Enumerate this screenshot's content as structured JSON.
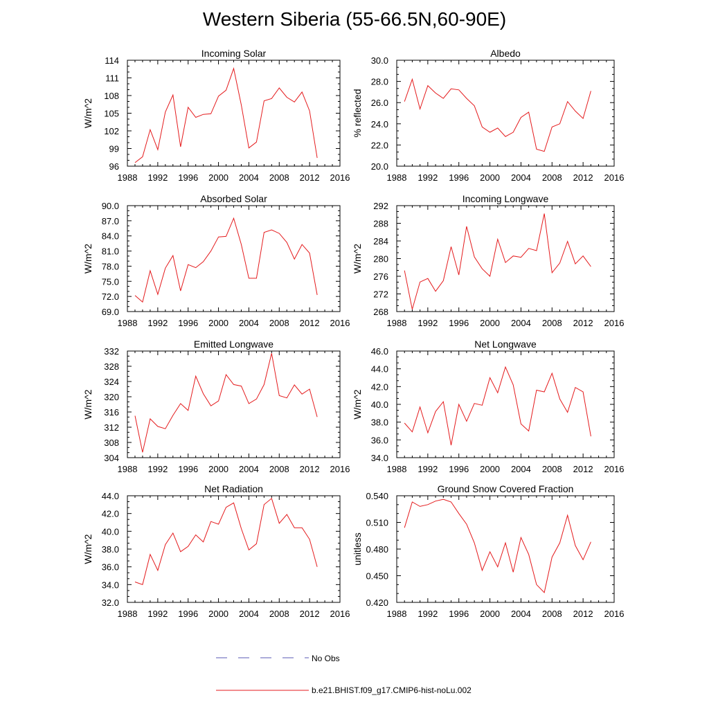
{
  "title": "Western Siberia (55-66.5N,60-90E)",
  "legend": {
    "obs_label": "No Obs",
    "model_label": "b.e21.BHIST.f09_g17.CMIP6-hist-noLu.002",
    "obs_color": "#5a5ab4",
    "model_color": "#e41a1c",
    "placement": "bottom-center"
  },
  "chart_data": [
    {
      "type": "line",
      "title": "Incoming Solar",
      "ylabel": "W/m^2",
      "xlim": [
        1988,
        2016
      ],
      "ylim": [
        96,
        114
      ],
      "xticks": [
        "1988",
        "1992",
        "1996",
        "2000",
        "2004",
        "2008",
        "2012",
        "2016"
      ],
      "yticks": [
        "96",
        "99",
        "102",
        "105",
        "108",
        "111",
        "114"
      ],
      "x": [
        1989,
        1990,
        1991,
        1992,
        1993,
        1994,
        1995,
        1996,
        1997,
        1998,
        1999,
        2000,
        2001,
        2002,
        2003,
        2004,
        2005,
        2006,
        2007,
        2008,
        2009,
        2010,
        2011,
        2012,
        2013
      ],
      "series": [
        {
          "color": "#e41a1c",
          "values": [
            96.6,
            97.6,
            102.2,
            98.8,
            105.2,
            108.1,
            99.3,
            106.0,
            104.3,
            104.8,
            104.9,
            107.9,
            108.9,
            112.6,
            106.4,
            99.1,
            100.1,
            107.1,
            107.5,
            109.3,
            107.7,
            106.9,
            108.6,
            105.4,
            97.4
          ]
        }
      ]
    },
    {
      "type": "line",
      "title": "Albedo",
      "ylabel": "% reflected",
      "xlim": [
        1988,
        2016
      ],
      "ylim": [
        20,
        30
      ],
      "xticks": [
        "1988",
        "1992",
        "1996",
        "2000",
        "2004",
        "2008",
        "2012",
        "2016"
      ],
      "yticks": [
        "20.0",
        "22.0",
        "24.0",
        "26.0",
        "28.0",
        "30.0"
      ],
      "x": [
        1989,
        1990,
        1991,
        1992,
        1993,
        1994,
        1995,
        1996,
        1997,
        1998,
        1999,
        2000,
        2001,
        2002,
        2003,
        2004,
        2005,
        2006,
        2007,
        2008,
        2009,
        2010,
        2011,
        2012,
        2013
      ],
      "series": [
        {
          "color": "#e41a1c",
          "values": [
            26.1,
            28.2,
            25.4,
            27.6,
            26.9,
            26.4,
            27.3,
            27.2,
            26.4,
            25.7,
            23.7,
            23.2,
            23.6,
            22.8,
            23.2,
            24.6,
            25.1,
            21.6,
            21.4,
            23.7,
            24.0,
            26.1,
            25.2,
            24.5,
            27.1
          ]
        }
      ]
    },
    {
      "type": "line",
      "title": "Absorbed Solar",
      "ylabel": "W/m^2",
      "xlim": [
        1988,
        2016
      ],
      "ylim": [
        69,
        90
      ],
      "xticks": [
        "1988",
        "1992",
        "1996",
        "2000",
        "2004",
        "2008",
        "2012",
        "2016"
      ],
      "yticks": [
        "69.0",
        "72.0",
        "75.0",
        "78.0",
        "81.0",
        "84.0",
        "87.0",
        "90.0"
      ],
      "x": [
        1989,
        1990,
        1991,
        1992,
        1993,
        1994,
        1995,
        1996,
        1997,
        1998,
        1999,
        2000,
        2001,
        2002,
        2003,
        2004,
        2005,
        2006,
        2007,
        2008,
        2009,
        2010,
        2011,
        2012,
        2013
      ],
      "series": [
        {
          "color": "#e41a1c",
          "values": [
            72.2,
            70.9,
            77.1,
            72.4,
            77.6,
            80.1,
            73.1,
            78.3,
            77.7,
            78.9,
            81.0,
            83.8,
            83.9,
            87.5,
            82.3,
            75.6,
            75.6,
            84.7,
            85.2,
            84.5,
            82.7,
            79.4,
            82.3,
            80.6,
            72.3
          ]
        }
      ]
    },
    {
      "type": "line",
      "title": "Incoming Longwave",
      "ylabel": "W/m^2",
      "xlim": [
        1988,
        2016
      ],
      "ylim": [
        268,
        292
      ],
      "xticks": [
        "1988",
        "1992",
        "1996",
        "2000",
        "2004",
        "2008",
        "2012",
        "2016"
      ],
      "yticks": [
        "268",
        "272",
        "276",
        "280",
        "284",
        "288",
        "292"
      ],
      "x": [
        1989,
        1990,
        1991,
        1992,
        1993,
        1994,
        1995,
        1996,
        1997,
        1998,
        1999,
        2000,
        2001,
        2002,
        2003,
        2004,
        2005,
        2006,
        2007,
        2008,
        2009,
        2010,
        2011,
        2012,
        2013
      ],
      "series": [
        {
          "color": "#e41a1c",
          "values": [
            277.3,
            268.5,
            274.7,
            275.5,
            272.6,
            275.0,
            282.7,
            276.3,
            287.3,
            280.4,
            277.7,
            276.0,
            284.4,
            279.1,
            280.6,
            280.3,
            282.3,
            281.8,
            290.2,
            276.8,
            279.0,
            283.9,
            278.8,
            280.6,
            278.2
          ]
        }
      ]
    },
    {
      "type": "line",
      "title": "Emitted Longwave",
      "ylabel": "W/m^2",
      "xlim": [
        1988,
        2016
      ],
      "ylim": [
        304,
        332
      ],
      "xticks": [
        "1988",
        "1992",
        "1996",
        "2000",
        "2004",
        "2008",
        "2012",
        "2016"
      ],
      "yticks": [
        "304",
        "308",
        "312",
        "316",
        "320",
        "324",
        "328",
        "332"
      ],
      "x": [
        1989,
        1990,
        1991,
        1992,
        1993,
        1994,
        1995,
        1996,
        1997,
        1998,
        1999,
        2000,
        2001,
        2002,
        2003,
        2004,
        2005,
        2006,
        2007,
        2008,
        2009,
        2010,
        2011,
        2012,
        2013
      ],
      "series": [
        {
          "color": "#e41a1c",
          "values": [
            315.0,
            305.4,
            314.2,
            312.2,
            311.6,
            315.1,
            318.2,
            316.4,
            325.4,
            320.8,
            317.6,
            318.9,
            325.8,
            323.2,
            322.8,
            318.2,
            319.4,
            323.2,
            331.4,
            320.3,
            319.7,
            323.1,
            320.7,
            322.0,
            314.7
          ]
        }
      ]
    },
    {
      "type": "line",
      "title": "Net Longwave",
      "ylabel": "W/m^2",
      "xlim": [
        1988,
        2016
      ],
      "ylim": [
        34,
        46
      ],
      "xticks": [
        "1988",
        "1992",
        "1996",
        "2000",
        "2004",
        "2008",
        "2012",
        "2016"
      ],
      "yticks": [
        "34.0",
        "36.0",
        "38.0",
        "40.0",
        "42.0",
        "44.0",
        "46.0"
      ],
      "x": [
        1989,
        1990,
        1991,
        1992,
        1993,
        1994,
        1995,
        1996,
        1997,
        1998,
        1999,
        2000,
        2001,
        2002,
        2003,
        2004,
        2005,
        2006,
        2007,
        2008,
        2009,
        2010,
        2011,
        2012,
        2013
      ],
      "series": [
        {
          "color": "#e41a1c",
          "values": [
            37.9,
            36.9,
            39.7,
            36.8,
            39.2,
            40.3,
            35.4,
            40.0,
            38.1,
            40.1,
            39.9,
            43.0,
            41.3,
            44.2,
            42.2,
            37.8,
            37.0,
            41.6,
            41.4,
            43.5,
            40.6,
            39.1,
            41.9,
            41.4,
            36.4
          ]
        }
      ]
    },
    {
      "type": "line",
      "title": "Net Radiation",
      "ylabel": "W/m^2",
      "xlim": [
        1988,
        2016
      ],
      "ylim": [
        32,
        44
      ],
      "xticks": [
        "1988",
        "1992",
        "1996",
        "2000",
        "2004",
        "2008",
        "2012",
        "2016"
      ],
      "yticks": [
        "32.0",
        "34.0",
        "36.0",
        "38.0",
        "40.0",
        "42.0",
        "44.0"
      ],
      "x": [
        1989,
        1990,
        1991,
        1992,
        1993,
        1994,
        1995,
        1996,
        1997,
        1998,
        1999,
        2000,
        2001,
        2002,
        2003,
        2004,
        2005,
        2006,
        2007,
        2008,
        2009,
        2010,
        2011,
        2012,
        2013
      ],
      "series": [
        {
          "color": "#e41a1c",
          "values": [
            34.3,
            34.0,
            37.4,
            35.6,
            38.5,
            39.8,
            37.7,
            38.3,
            39.6,
            38.8,
            41.1,
            40.8,
            42.7,
            43.2,
            40.3,
            37.9,
            38.6,
            43.0,
            43.7,
            40.9,
            41.9,
            40.4,
            40.4,
            39.1,
            36.0
          ]
        }
      ]
    },
    {
      "type": "line",
      "title": "Ground Snow Covered Fraction",
      "ylabel": "unitless",
      "xlim": [
        1988,
        2016
      ],
      "ylim": [
        0.42,
        0.54
      ],
      "xticks": [
        "1988",
        "1992",
        "1996",
        "2000",
        "2004",
        "2008",
        "2012",
        "2016"
      ],
      "yticks": [
        "0.420",
        "0.450",
        "0.480",
        "0.510",
        "0.540"
      ],
      "x": [
        1989,
        1990,
        1991,
        1992,
        1993,
        1994,
        1995,
        1996,
        1997,
        1998,
        1999,
        2000,
        2001,
        2002,
        2003,
        2004,
        2005,
        2006,
        2007,
        2008,
        2009,
        2010,
        2011,
        2012,
        2013
      ],
      "series": [
        {
          "color": "#e41a1c",
          "values": [
            0.504,
            0.533,
            0.528,
            0.53,
            0.534,
            0.536,
            0.533,
            0.52,
            0.508,
            0.487,
            0.456,
            0.477,
            0.46,
            0.487,
            0.454,
            0.493,
            0.474,
            0.44,
            0.431,
            0.471,
            0.487,
            0.518,
            0.484,
            0.468,
            0.488
          ]
        }
      ]
    }
  ]
}
